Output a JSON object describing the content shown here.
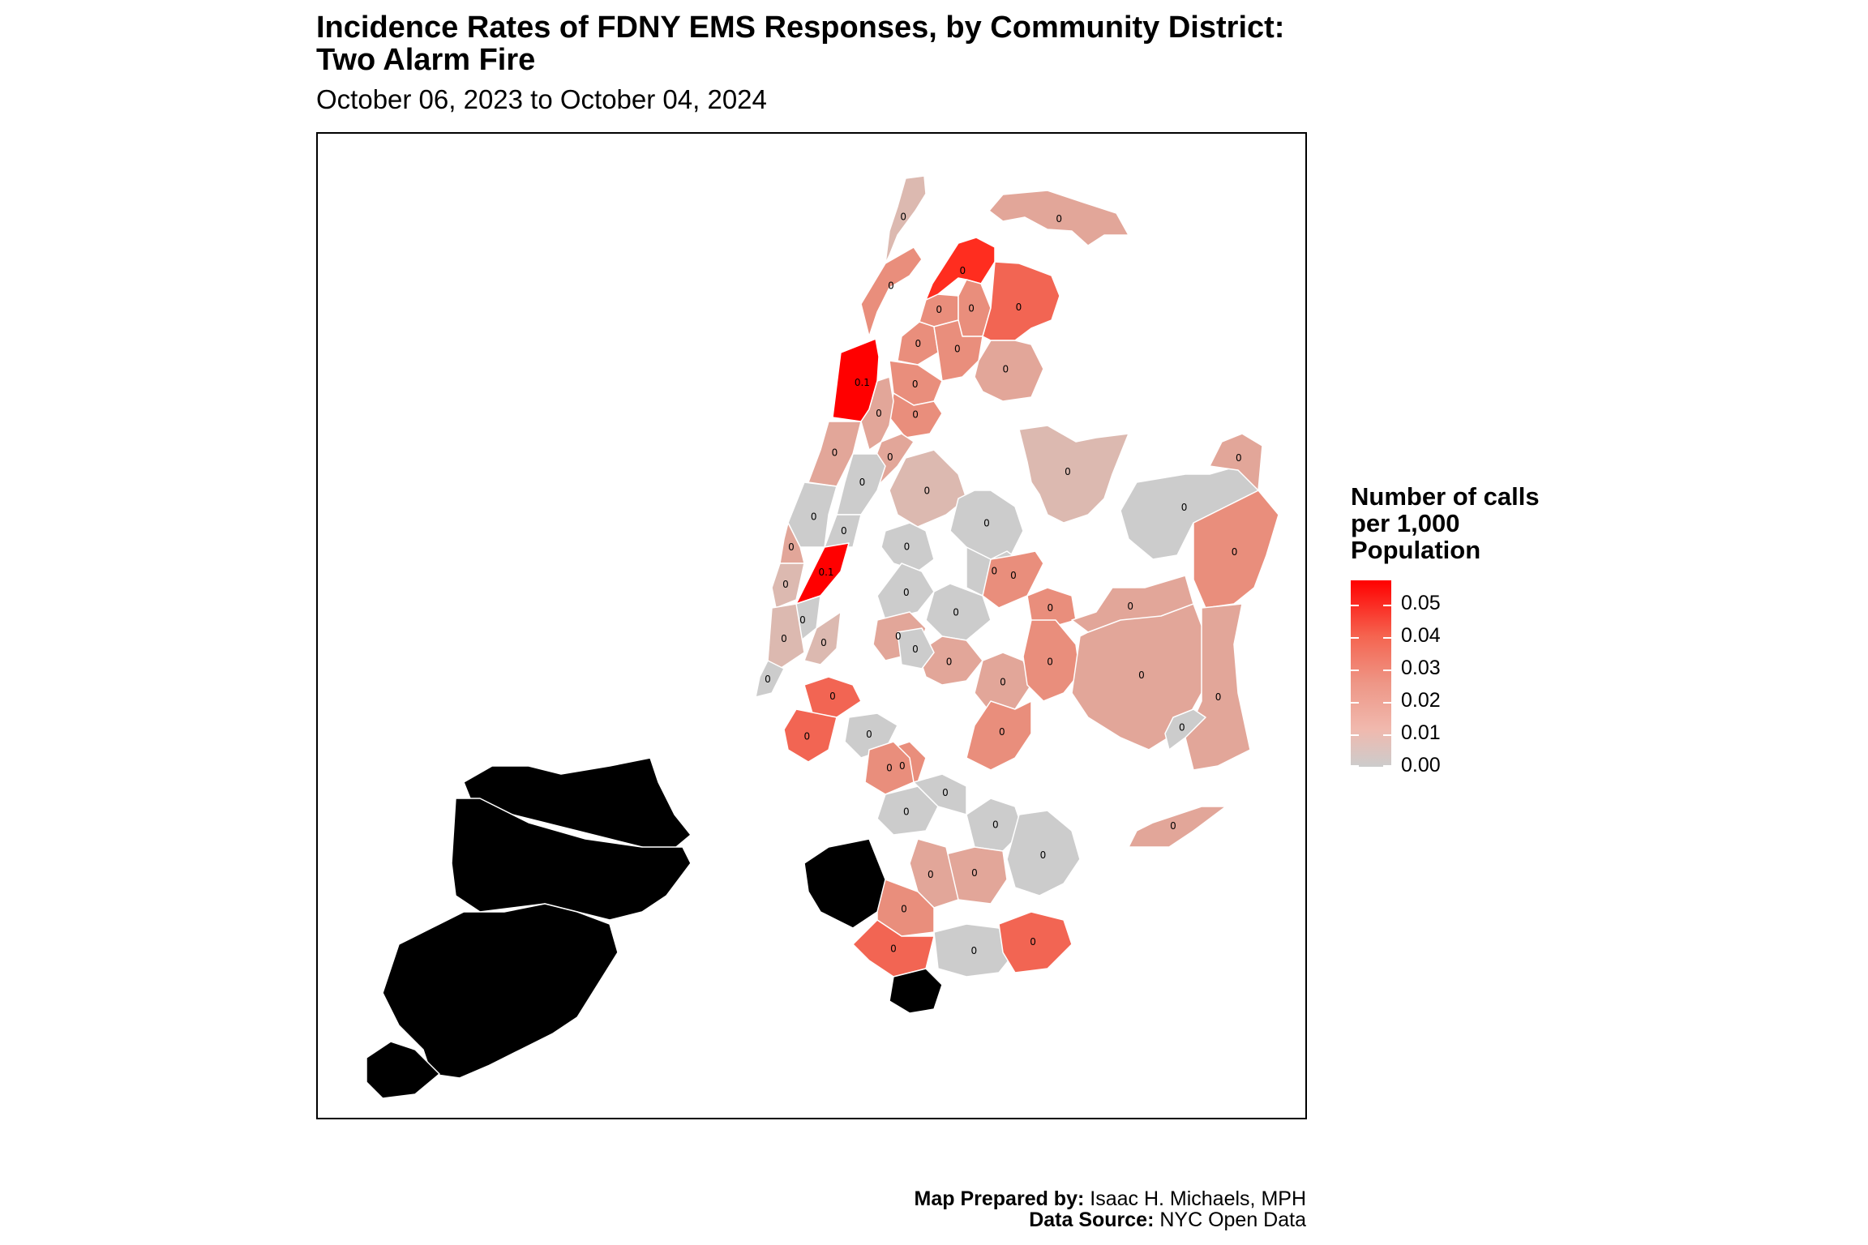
{
  "title": "Incidence Rates of FDNY EMS Responses, by Community District:\nTwo Alarm Fire",
  "subtitle": "October 06, 2023 to October 04, 2024",
  "legend": {
    "title": "Number of calls\nper 1,000\nPopulation",
    "ticks": [
      "0.05",
      "0.04",
      "0.03",
      "0.02",
      "0.01",
      "0.00"
    ],
    "tick_values": [
      0.05,
      0.04,
      0.03,
      0.02,
      0.01,
      0.0
    ],
    "max": 0.056
  },
  "colors": {
    "none": "#cccccc",
    "very_low": "#dcb9b0",
    "low": "#e2a699",
    "mid": "#e98e7c",
    "high": "#f26553",
    "very_high": "#ff2d1f",
    "max": "#ff0000",
    "border": "#ffffff"
  },
  "footer": {
    "prepared_label": "Map Prepared by:",
    "prepared_value": " Isaac H. Michaels, MPH",
    "source_label": "Data Source:",
    "source_value": " NYC Open Data"
  },
  "districts": [
    {
      "label": "0",
      "rate": 0.012
    },
    {
      "label": "0",
      "rate": 0.015
    },
    {
      "label": "0",
      "rate": 0.045
    },
    {
      "label": "0",
      "rate": 0.025
    },
    {
      "label": "0",
      "rate": 0.025
    },
    {
      "label": "0",
      "rate": 0.03
    },
    {
      "label": "0",
      "rate": 0.025
    },
    {
      "label": "0",
      "rate": 0.035
    },
    {
      "label": "0",
      "rate": 0.025
    },
    {
      "label": "0",
      "rate": 0.018
    },
    {
      "label": "0",
      "rate": 0.025
    },
    {
      "label": "0",
      "rate": 0.025
    },
    {
      "label": "0.1",
      "rate": 0.056
    },
    {
      "label": "0",
      "rate": 0.015
    },
    {
      "label": "0",
      "rate": 0.02
    },
    {
      "label": "0",
      "rate": 0.015
    },
    {
      "label": "0",
      "rate": 0.0
    },
    {
      "label": "0",
      "rate": 0.0
    },
    {
      "label": "0",
      "rate": 0.0
    },
    {
      "label": "0",
      "rate": 0.015
    },
    {
      "label": "0.1",
      "rate": 0.056
    },
    {
      "label": "0",
      "rate": 0.0
    },
    {
      "label": "0",
      "rate": 0.012
    },
    {
      "label": "0",
      "rate": 0.012
    },
    {
      "label": "0",
      "rate": 0.012
    },
    {
      "label": "0",
      "rate": 0.0
    },
    {
      "label": "0",
      "rate": 0.012
    },
    {
      "label": "0",
      "rate": 0.0
    },
    {
      "label": "0",
      "rate": 0.0
    },
    {
      "label": "0",
      "rate": 0.008
    },
    {
      "label": "0",
      "rate": 0.025
    },
    {
      "label": "0",
      "rate": 0.025
    },
    {
      "label": "0",
      "rate": 0.0
    },
    {
      "label": "0",
      "rate": 0.0
    },
    {
      "label": "0",
      "rate": 0.0
    },
    {
      "label": "0",
      "rate": 0.015
    },
    {
      "label": "0",
      "rate": 0.02
    },
    {
      "label": "0",
      "rate": 0.015
    },
    {
      "label": "0",
      "rate": 0.025
    },
    {
      "label": "0",
      "rate": 0.018
    },
    {
      "label": "0",
      "rate": 0.03
    },
    {
      "label": "0",
      "rate": 0.015
    },
    {
      "label": "0",
      "rate": 0.015
    },
    {
      "label": "0",
      "rate": 0.0
    },
    {
      "label": "0",
      "rate": 0.015
    },
    {
      "label": "0",
      "rate": 0.025
    },
    {
      "label": "0",
      "rate": 0.02
    },
    {
      "label": "0",
      "rate": 0.0
    },
    {
      "label": "0",
      "rate": 0.0
    },
    {
      "label": "0",
      "rate": 0.0
    },
    {
      "label": "0",
      "rate": 0.04
    },
    {
      "label": "0",
      "rate": 0.025
    },
    {
      "label": "0",
      "rate": 0.035
    },
    {
      "label": "0",
      "rate": 0.025
    },
    {
      "label": "0",
      "rate": 0.0
    },
    {
      "label": "0",
      "rate": 0.0
    },
    {
      "label": "0",
      "rate": 0.0
    },
    {
      "label": "0",
      "rate": 0.02
    },
    {
      "label": "0",
      "rate": 0.015
    },
    {
      "label": "0",
      "rate": 0.025
    },
    {
      "label": "0",
      "rate": 0.0
    },
    {
      "label": "0",
      "rate": 0.0
    },
    {
      "label": "0",
      "rate": 0.04
    },
    {
      "label": "0",
      "rate": 0.04
    }
  ]
}
